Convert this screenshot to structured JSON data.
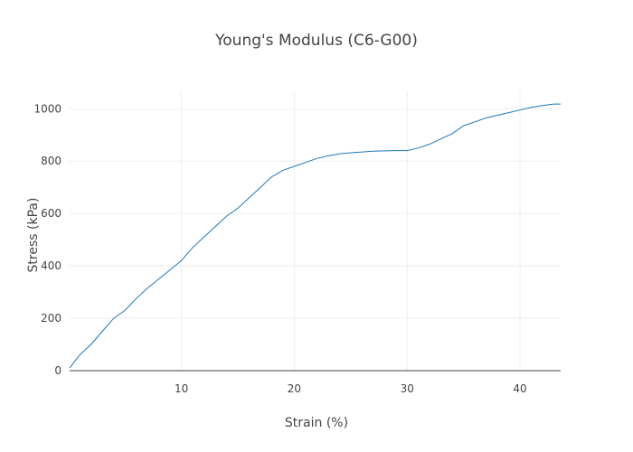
{
  "chart_data": {
    "type": "line",
    "title": "Young's Modulus (C6-G00)",
    "xlabel": "Strain (%)",
    "ylabel": "Stress (kPa)",
    "xlim": [
      0.1,
      43.6
    ],
    "ylim": [
      0,
      1070
    ],
    "x_ticks": [
      10,
      20,
      30,
      40
    ],
    "y_ticks": [
      0,
      200,
      400,
      600,
      800,
      1000
    ],
    "grid": true,
    "legend": false,
    "line_color": "#1f77b4",
    "series": [
      {
        "x": [
          0.1,
          1,
          2,
          3,
          4,
          5,
          6,
          7,
          8,
          9,
          10,
          11,
          12,
          13,
          14,
          15,
          16,
          17,
          18,
          19,
          20,
          21,
          22,
          23,
          24,
          25,
          26,
          27,
          28,
          29,
          30,
          31,
          32,
          33,
          34,
          35,
          36,
          37,
          38,
          39,
          40,
          41,
          42,
          43,
          43.6
        ],
        "y": [
          10,
          60,
          100,
          150,
          200,
          230,
          275,
          315,
          350,
          385,
          420,
          470,
          510,
          550,
          590,
          620,
          660,
          700,
          740,
          765,
          780,
          795,
          810,
          820,
          828,
          832,
          835,
          838,
          839,
          840,
          840,
          850,
          865,
          885,
          905,
          935,
          950,
          965,
          975,
          985,
          995,
          1005,
          1012,
          1018,
          1018
        ]
      }
    ]
  }
}
